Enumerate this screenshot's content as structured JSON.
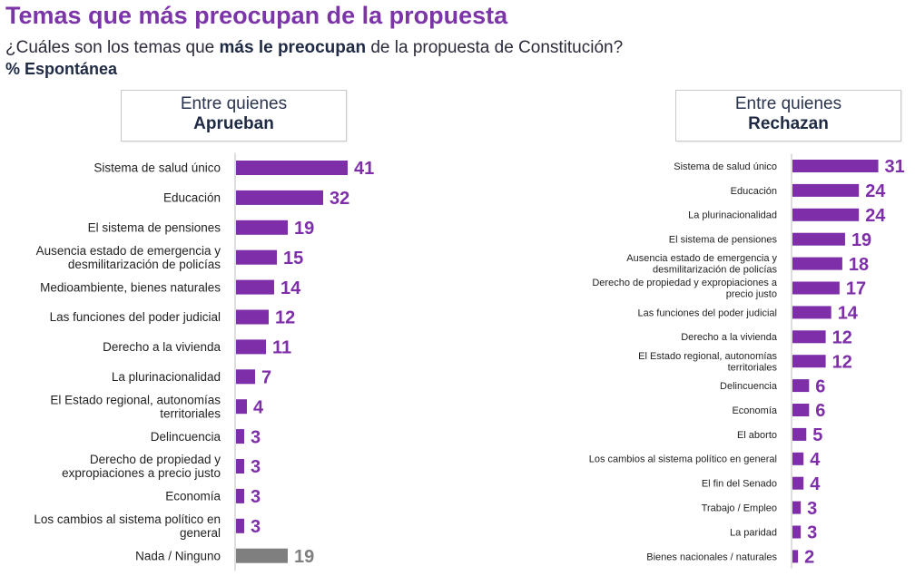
{
  "header": {
    "title": "Temas que más preocupan de la propuesta",
    "subtitle_pre": "¿Cuáles son los temas que ",
    "subtitle_bold": "más le preocupan",
    "subtitle_post": " de la propuesta de Constitución?",
    "note": "% Espontánea"
  },
  "groups": {
    "left": {
      "line1": "Entre quienes",
      "line2": "Aprueban"
    },
    "right": {
      "line1": "Entre quienes",
      "line2": "Rechazan"
    }
  },
  "colors": {
    "bar": "#7d2ea8",
    "bar_none": "#7f7f7f",
    "value": "#7d2ea8",
    "value_none": "#7f7f7f"
  },
  "chart_data": [
    {
      "type": "bar",
      "orientation": "horizontal",
      "group": "Entre quienes Aprueban",
      "categories": [
        "Sistema de salud único",
        "Educación",
        "El sistema de pensiones",
        "Ausencia estado de emergencia y desmilitarización de policías",
        "Medioambiente, bienes naturales",
        "Las funciones del poder judicial",
        "Derecho a la vivienda",
        "La plurinacionalidad",
        "El Estado regional, autonomías territoriales",
        "Delincuencia",
        "Derecho de propiedad y expropiaciones a precio justo",
        "Economía",
        "Los cambios al sistema político en general",
        "Nada / Ninguno"
      ],
      "label_lines": [
        [
          "Sistema de salud único"
        ],
        [
          "Educación"
        ],
        [
          "El sistema de pensiones"
        ],
        [
          "Ausencia estado de emergencia y",
          "desmilitarización de policías"
        ],
        [
          "Medioambiente, bienes naturales"
        ],
        [
          "Las funciones del poder judicial"
        ],
        [
          "Derecho a la vivienda"
        ],
        [
          "La plurinacionalidad"
        ],
        [
          "El Estado regional, autonomías",
          "territoriales"
        ],
        [
          "Delincuencia"
        ],
        [
          "Derecho de propiedad y",
          "expropiaciones a precio justo"
        ],
        [
          "Economía"
        ],
        [
          "Los cambios al sistema político en",
          "general"
        ],
        [
          "Nada / Ninguno"
        ]
      ],
      "values": [
        41,
        32,
        19,
        15,
        14,
        12,
        11,
        7,
        4,
        3,
        3,
        3,
        3,
        19
      ],
      "highlight_gray": [
        false,
        false,
        false,
        false,
        false,
        false,
        false,
        false,
        false,
        false,
        false,
        false,
        false,
        true
      ]
    },
    {
      "type": "bar",
      "orientation": "horizontal",
      "group": "Entre quienes Rechazan",
      "categories": [
        "Sistema de salud único",
        "Educación",
        "La plurinacionalidad",
        "El sistema de pensiones",
        "Ausencia estado de emergencia y desmilitarización de policías",
        "Derecho de propiedad y expropiaciones a precio justo",
        "Las funciones del poder judicial",
        "Derecho a la vivienda",
        "El Estado regional, autonomías territoriales",
        "Delincuencia",
        "Economía",
        "El aborto",
        "Los cambios al sistema político en general",
        "El fin del Senado",
        "Trabajo / Empleo",
        "La paridad",
        "Bienes nacionales / naturales"
      ],
      "label_lines": [
        [
          "Sistema de salud único"
        ],
        [
          "Educación"
        ],
        [
          "La plurinacionalidad"
        ],
        [
          "El sistema de pensiones"
        ],
        [
          "Ausencia estado de emergencia y",
          "desmilitarización de policías"
        ],
        [
          "Derecho de propiedad y expropiaciones a",
          "precio justo"
        ],
        [
          "Las funciones del poder judicial"
        ],
        [
          "Derecho a la vivienda"
        ],
        [
          "El Estado regional, autonomías",
          "territoriales"
        ],
        [
          "Delincuencia"
        ],
        [
          "Economía"
        ],
        [
          "El aborto"
        ],
        [
          "Los cambios al sistema político en general"
        ],
        [
          "El fin del Senado"
        ],
        [
          "Trabajo / Empleo"
        ],
        [
          "La paridad"
        ],
        [
          "Bienes nacionales / naturales"
        ]
      ],
      "values": [
        31,
        24,
        24,
        19,
        18,
        17,
        14,
        12,
        12,
        6,
        6,
        5,
        4,
        4,
        3,
        3,
        2
      ],
      "highlight_gray": [
        false,
        false,
        false,
        false,
        false,
        false,
        false,
        false,
        false,
        false,
        false,
        false,
        false,
        false,
        false,
        false,
        false
      ]
    }
  ]
}
